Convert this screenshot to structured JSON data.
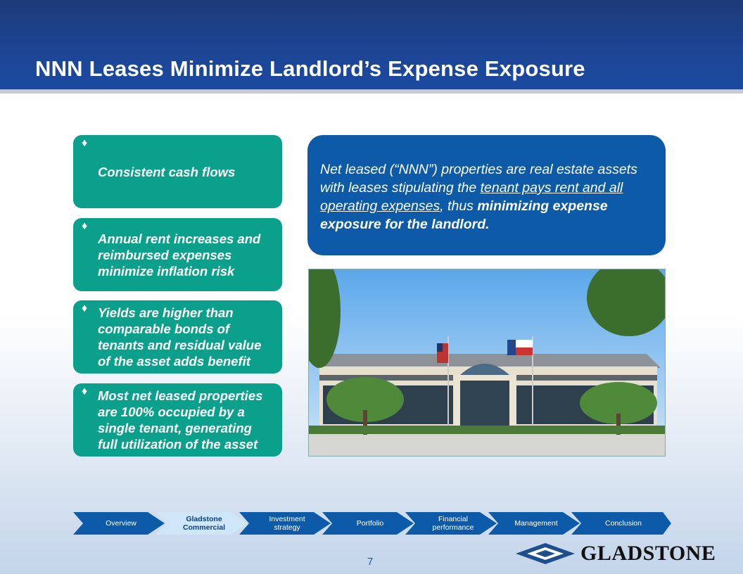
{
  "header": {
    "title": "NNN Leases Minimize Landlord’s Expense Exposure"
  },
  "bullets": [
    "Consistent cash flows",
    "Annual rent increases and reimbursed expenses minimize inflation risk",
    "Yields are higher than comparable bonds of tenants and residual value of the asset adds benefit",
    "Most net leased properties are 100% occupied by a single tenant, generating full utilization of the asset"
  ],
  "bullet_icon": "diamond-icon",
  "callout": {
    "part1": "Net leased (“NNN”) properties are real estate assets with leases stipulating the ",
    "underlined": "tenant pays rent and all operating expenses",
    "part2": ", thus ",
    "bold": "minimizing expense exposure for the landlord."
  },
  "nav": {
    "steps": [
      "Overview",
      "Gladstone Commercial",
      "Investment strategy",
      "Portfolio",
      "Financial performance",
      "Management",
      "Conclusion"
    ],
    "active": "Gladstone Commercial"
  },
  "footer": {
    "page": "7",
    "logo_text": "GLADSTONE"
  },
  "colors": {
    "header": "#1c4596",
    "teal": "#0ba08c",
    "callout": "#0d5aa8",
    "nav": "#0d5aa8",
    "nav_active": "#cfe6f8"
  }
}
